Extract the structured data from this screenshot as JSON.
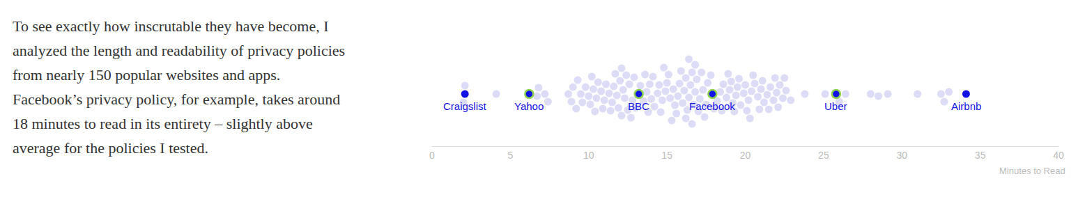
{
  "paragraph": "To see exactly how inscrutable they have become, I analyzed the length and readability of privacy policies from nearly 150 popular websites and apps. Facebook’s privacy policy, for example, takes around 18 minutes to read in its entirety – slightly above average for the policies I tested.",
  "chart_data": {
    "type": "scatter",
    "x_label": "Minutes to Read",
    "xlim": [
      0,
      40
    ],
    "xticks": [
      0,
      5,
      10,
      15,
      20,
      25,
      30,
      35,
      40
    ],
    "tick_labels": "x",
    "grid": false,
    "color": "#dcdcf7",
    "values": [
      2.0,
      2.1,
      4.1,
      6.7,
      6.8,
      7.2,
      7.4,
      8.7,
      8.9,
      9.0,
      9.2,
      9.5,
      9.6,
      9.8,
      10.0,
      10.1,
      10.3,
      10.5,
      10.6,
      10.8,
      11.0,
      11.1,
      11.3,
      11.5,
      11.6,
      11.8,
      11.9,
      12.0,
      12.1,
      12.2,
      12.3,
      12.4,
      12.6,
      12.8,
      13.0,
      13.5,
      13.7,
      13.9,
      14.0,
      14.2,
      14.4,
      14.5,
      14.7,
      14.9,
      15.0,
      15.2,
      15.4,
      15.5,
      15.7,
      15.8,
      16.0,
      16.1,
      16.2,
      16.3,
      16.4,
      16.5,
      16.6,
      16.7,
      16.8,
      16.9,
      17.0,
      17.1,
      17.3,
      17.5,
      17.6,
      18.2,
      18.4,
      18.6,
      18.8,
      19.0,
      19.2,
      19.4,
      19.5,
      19.7,
      19.9,
      20.0,
      20.2,
      20.4,
      20.6,
      20.8,
      21.0,
      21.2,
      21.4,
      21.6,
      21.8,
      22.0,
      22.2,
      22.4,
      22.6,
      22.9,
      23.8,
      25.1,
      26.0,
      26.4,
      28.0,
      28.5,
      29.1,
      31.0,
      32.5,
      32.7,
      33.0,
      10.2,
      10.9,
      11.4,
      12.1,
      12.5,
      13.3,
      14.1,
      14.6,
      15.1,
      15.6,
      16.2,
      16.6,
      17.2,
      18.0,
      18.5,
      19.1,
      19.6,
      20.1,
      20.5,
      21.1,
      21.5,
      22.1,
      12.9,
      13.8,
      15.3,
      16.8,
      17.8,
      19.3,
      20.9,
      11.7,
      10.4,
      9.3,
      14.8,
      18.9,
      21.9,
      16.4,
      13.6,
      12.7,
      15.9,
      17.4,
      20.3,
      22.5
    ],
    "highlights": [
      {
        "name": "Craigslist",
        "value": 2.1,
        "color": "#1212e6",
        "marker": "plain"
      },
      {
        "name": "Yahoo",
        "value": 6.2,
        "color": "#1212e6",
        "marker": "ringed"
      },
      {
        "name": "BBC",
        "value": 13.2,
        "color": "#1212e6",
        "marker": "ringed"
      },
      {
        "name": "Facebook",
        "value": 17.9,
        "color": "#1212e6",
        "marker": "ringed"
      },
      {
        "name": "Uber",
        "value": 25.8,
        "color": "#1212e6",
        "marker": "ringed"
      },
      {
        "name": "Airbnb",
        "value": 34.1,
        "color": "#1212e6",
        "marker": "plain"
      }
    ]
  }
}
